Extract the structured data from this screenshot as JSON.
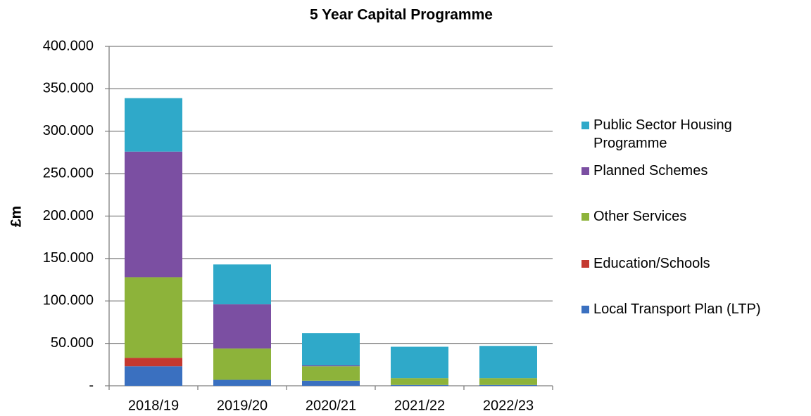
{
  "chart_data": {
    "type": "stacked_bar",
    "title": "5 Year Capital Programme",
    "y_label": "£m",
    "categories": [
      "2018/19",
      "2019/20",
      "2020/21",
      "2021/22",
      "2022/23"
    ],
    "series": [
      {
        "name": "Local Transport Plan (LTP)",
        "color": "#3a70c0",
        "values": [
          23,
          7,
          6,
          1,
          1
        ]
      },
      {
        "name": "Education/Schools",
        "color": "#c4382f",
        "values": [
          10,
          0,
          0,
          0,
          0
        ]
      },
      {
        "name": "Other Services",
        "color": "#8db33a",
        "values": [
          95,
          37,
          17,
          8,
          8
        ]
      },
      {
        "name": "Planned Schemes",
        "color": "#7b4fa2",
        "values": [
          148,
          52,
          1,
          0,
          0
        ]
      },
      {
        "name": "Public Sector Housing Programme",
        "color": "#2fa9c9",
        "values": [
          63,
          47,
          38,
          37,
          38
        ]
      }
    ],
    "ylim": [
      0,
      400
    ],
    "yticks": [
      {
        "value": 0,
        "label": "-"
      },
      {
        "value": 50,
        "label": "50.000"
      },
      {
        "value": 100,
        "label": "100.000"
      },
      {
        "value": 150,
        "label": "150.000"
      },
      {
        "value": 200,
        "label": "200.000"
      },
      {
        "value": 250,
        "label": "250.000"
      },
      {
        "value": 300,
        "label": "300.000"
      },
      {
        "value": 350,
        "label": "350.000"
      },
      {
        "value": 400,
        "label": "400.000"
      }
    ],
    "grid": true,
    "legend": "right"
  }
}
